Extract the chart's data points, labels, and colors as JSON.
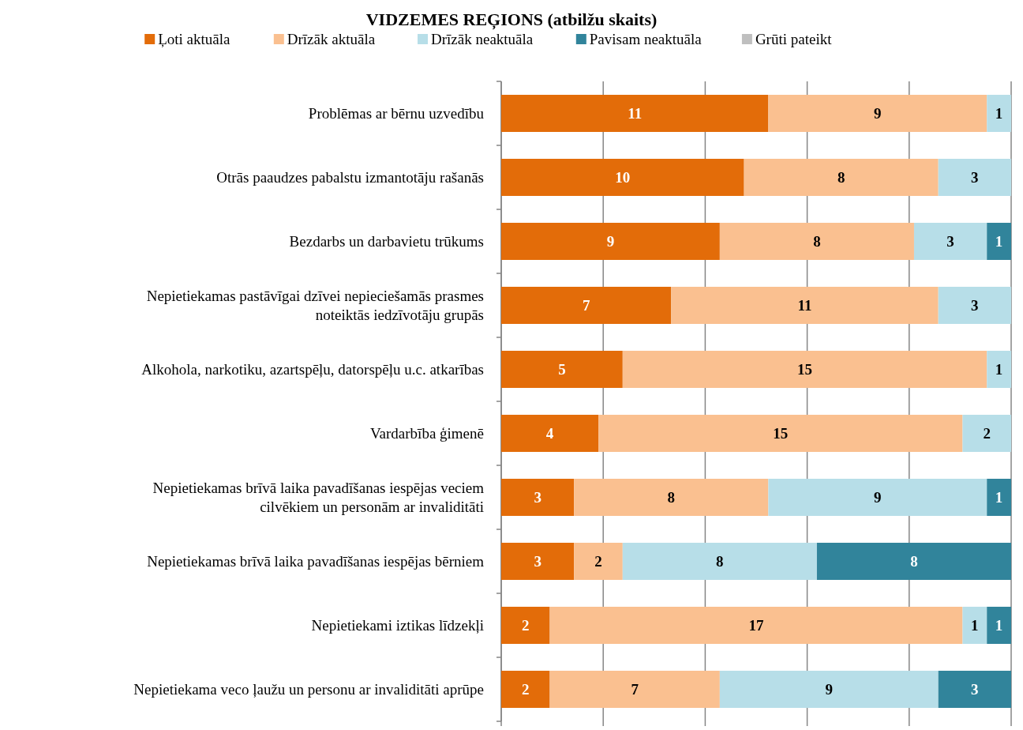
{
  "chart_data": {
    "type": "bar",
    "orientation": "horizontal",
    "stacked": true,
    "title": "VIDZEMES REĢIONS (atbilžu skaits)",
    "categories": [
      "Problēmas ar bērnu uzvedību",
      "Otrās paaudzes pabalstu izmantotāju rašanās",
      "Bezdarbs un darbavietu trūkums",
      "Nepietiekamas pastāvīgai dzīvei nepieciešamās prasmes noteiktās iedzīvotāju grupās",
      "Alkohola, narkotiku, azartspēļu, datorspēļu u.c. atkarības",
      "Vardarbība ģimenē",
      "Nepietiekamas brīvā laika pavadīšanas iespējas veciem cilvēkiem un personām ar invaliditāti",
      "Nepietiekamas brīvā laika pavadīšanas iespējas bērniem",
      "Nepietiekami iztikas līdzekļi",
      "Nepietiekama veco ļaužu un personu ar invaliditāti aprūpe"
    ],
    "series": [
      {
        "name": "Ļoti aktuāla",
        "color": "#e36c09",
        "values": [
          11,
          10,
          9,
          7,
          5,
          4,
          3,
          3,
          2,
          2
        ]
      },
      {
        "name": "Drīzāk aktuāla",
        "color": "#fac090",
        "values": [
          9,
          8,
          8,
          11,
          15,
          15,
          8,
          2,
          17,
          7
        ]
      },
      {
        "name": "Drīzāk neaktuāla",
        "color": "#b7dee8",
        "values": [
          1,
          3,
          3,
          3,
          1,
          2,
          9,
          8,
          1,
          9
        ]
      },
      {
        "name": "Pavisam neaktuāla",
        "color": "#31849b",
        "values": [
          null,
          null,
          1,
          null,
          null,
          null,
          1,
          8,
          1,
          3
        ]
      },
      {
        "name": "Grūti pateikt",
        "color": "#bfbfbf",
        "values": [
          null,
          null,
          null,
          null,
          null,
          null,
          null,
          null,
          null,
          null
        ]
      }
    ],
    "xlim": [
      0,
      21
    ],
    "xticks": [
      {
        "value": 0,
        "label": null
      },
      {
        "value": 4.2,
        "label": null
      },
      {
        "value": 8.4,
        "label": null
      },
      {
        "value": 12.6,
        "label": null
      },
      {
        "value": 16.8,
        "label": null
      },
      {
        "value": 21,
        "label": null
      }
    ],
    "tick_labels": "y",
    "grid": "x",
    "legend": "top",
    "data_labels": true
  }
}
